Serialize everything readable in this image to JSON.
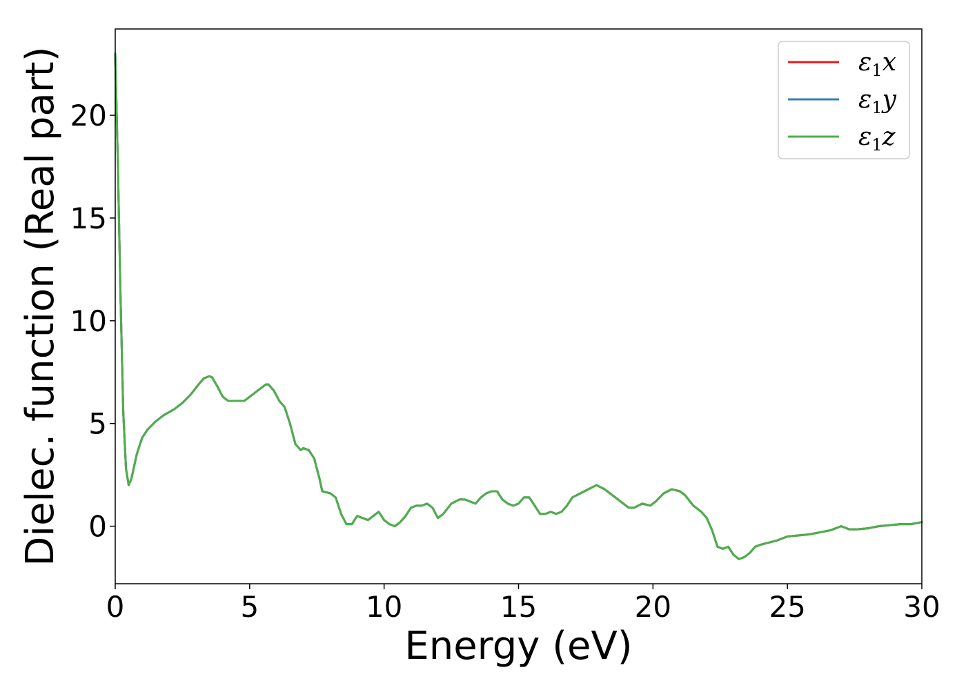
{
  "chart_data": {
    "type": "line",
    "xlabel": "Energy (eV)",
    "ylabel": "Dielec. function (Real part)",
    "xlim": [
      0,
      30
    ],
    "ylim": [
      -2.8,
      24.2
    ],
    "xticks": [
      0,
      5,
      10,
      15,
      20,
      25,
      30
    ],
    "yticks": [
      0,
      5,
      10,
      15,
      20
    ],
    "grid": false,
    "legend_position": "top-right",
    "series": [
      {
        "name": "ε1x",
        "legend_main": "ε",
        "legend_sub": "1",
        "legend_var": "x",
        "color": "#e41a1c",
        "x": [
          0,
          0.1,
          0.2,
          0.3,
          0.4,
          0.5,
          0.6,
          0.8,
          1.0,
          1.2,
          1.5,
          1.8,
          2.2,
          2.5,
          2.8,
          3.1,
          3.3,
          3.5,
          3.6,
          3.8,
          4.0,
          4.2,
          4.5,
          4.8,
          5.0,
          5.2,
          5.4,
          5.6,
          5.7,
          5.9,
          6.1,
          6.3,
          6.5,
          6.7,
          6.9,
          7.0,
          7.2,
          7.4,
          7.6,
          7.7,
          8.0,
          8.2,
          8.4,
          8.6,
          8.8,
          9.0,
          9.2,
          9.4,
          9.6,
          9.8,
          10.0,
          10.2,
          10.4,
          10.6,
          10.8,
          11.0,
          11.2,
          11.4,
          11.6,
          11.8,
          12.0,
          12.2,
          12.5,
          12.8,
          13.0,
          13.2,
          13.4,
          13.6,
          13.8,
          14.0,
          14.2,
          14.4,
          14.6,
          14.8,
          15.0,
          15.2,
          15.4,
          15.6,
          15.8,
          16.0,
          16.2,
          16.4,
          16.6,
          16.8,
          17.0,
          17.3,
          17.6,
          17.9,
          18.2,
          18.5,
          18.8,
          19.1,
          19.3,
          19.6,
          19.9,
          20.1,
          20.4,
          20.7,
          21.0,
          21.2,
          21.5,
          21.8,
          22.0,
          22.2,
          22.4,
          22.6,
          22.8,
          23.0,
          23.2,
          23.4,
          23.6,
          23.8,
          24.0,
          24.3,
          24.6,
          25.0,
          25.4,
          25.8,
          26.2,
          26.6,
          27.0,
          27.3,
          27.6,
          28.0,
          28.4,
          28.8,
          29.2,
          29.6,
          30.0
        ],
        "y": [
          23.0,
          17.5,
          11.0,
          5.5,
          2.8,
          2.0,
          2.3,
          3.5,
          4.3,
          4.7,
          5.1,
          5.4,
          5.7,
          6.0,
          6.4,
          6.9,
          7.2,
          7.3,
          7.25,
          6.8,
          6.3,
          6.1,
          6.1,
          6.1,
          6.3,
          6.5,
          6.7,
          6.9,
          6.9,
          6.6,
          6.1,
          5.8,
          5.0,
          4.0,
          3.7,
          3.8,
          3.7,
          3.3,
          2.3,
          1.7,
          1.6,
          1.4,
          0.6,
          0.1,
          0.1,
          0.5,
          0.4,
          0.3,
          0.5,
          0.7,
          0.3,
          0.1,
          0.0,
          0.2,
          0.5,
          0.9,
          1.0,
          1.0,
          1.1,
          0.9,
          0.4,
          0.6,
          1.1,
          1.3,
          1.3,
          1.2,
          1.1,
          1.4,
          1.6,
          1.7,
          1.7,
          1.3,
          1.1,
          1.0,
          1.1,
          1.4,
          1.4,
          1.0,
          0.6,
          0.6,
          0.7,
          0.6,
          0.7,
          1.0,
          1.4,
          1.6,
          1.8,
          2.0,
          1.8,
          1.5,
          1.2,
          0.9,
          0.9,
          1.1,
          1.0,
          1.2,
          1.6,
          1.8,
          1.7,
          1.5,
          1.0,
          0.7,
          0.4,
          -0.2,
          -1.0,
          -1.1,
          -1.0,
          -1.4,
          -1.6,
          -1.5,
          -1.3,
          -1.0,
          -0.9,
          -0.8,
          -0.7,
          -0.5,
          -0.45,
          -0.4,
          -0.3,
          -0.2,
          0.0,
          -0.15,
          -0.15,
          -0.1,
          0.0,
          0.05,
          0.1,
          0.1,
          0.2
        ]
      },
      {
        "name": "ε1y",
        "legend_main": "ε",
        "legend_sub": "1",
        "legend_var": "y",
        "color": "#377eb8",
        "x": [
          0,
          0.1,
          0.2,
          0.3,
          0.4,
          0.5,
          0.6,
          0.8,
          1.0,
          1.2,
          1.5,
          1.8,
          2.2,
          2.5,
          2.8,
          3.1,
          3.3,
          3.5,
          3.6,
          3.8,
          4.0,
          4.2,
          4.5,
          4.8,
          5.0,
          5.2,
          5.4,
          5.6,
          5.7,
          5.9,
          6.1,
          6.3,
          6.5,
          6.7,
          6.9,
          7.0,
          7.2,
          7.4,
          7.6,
          7.7,
          8.0,
          8.2,
          8.4,
          8.6,
          8.8,
          9.0,
          9.2,
          9.4,
          9.6,
          9.8,
          10.0,
          10.2,
          10.4,
          10.6,
          10.8,
          11.0,
          11.2,
          11.4,
          11.6,
          11.8,
          12.0,
          12.2,
          12.5,
          12.8,
          13.0,
          13.2,
          13.4,
          13.6,
          13.8,
          14.0,
          14.2,
          14.4,
          14.6,
          14.8,
          15.0,
          15.2,
          15.4,
          15.6,
          15.8,
          16.0,
          16.2,
          16.4,
          16.6,
          16.8,
          17.0,
          17.3,
          17.6,
          17.9,
          18.2,
          18.5,
          18.8,
          19.1,
          19.3,
          19.6,
          19.9,
          20.1,
          20.4,
          20.7,
          21.0,
          21.2,
          21.5,
          21.8,
          22.0,
          22.2,
          22.4,
          22.6,
          22.8,
          23.0,
          23.2,
          23.4,
          23.6,
          23.8,
          24.0,
          24.3,
          24.6,
          25.0,
          25.4,
          25.8,
          26.2,
          26.6,
          27.0,
          27.3,
          27.6,
          28.0,
          28.4,
          28.8,
          29.2,
          29.6,
          30.0
        ],
        "y": [
          23.0,
          17.5,
          11.0,
          5.5,
          2.8,
          2.0,
          2.3,
          3.5,
          4.3,
          4.7,
          5.1,
          5.4,
          5.7,
          6.0,
          6.4,
          6.9,
          7.2,
          7.3,
          7.25,
          6.8,
          6.3,
          6.1,
          6.1,
          6.1,
          6.3,
          6.5,
          6.7,
          6.9,
          6.9,
          6.6,
          6.1,
          5.8,
          5.0,
          4.0,
          3.7,
          3.8,
          3.7,
          3.3,
          2.3,
          1.7,
          1.6,
          1.4,
          0.6,
          0.1,
          0.1,
          0.5,
          0.4,
          0.3,
          0.5,
          0.7,
          0.3,
          0.1,
          0.0,
          0.2,
          0.5,
          0.9,
          1.0,
          1.0,
          1.1,
          0.9,
          0.4,
          0.6,
          1.1,
          1.3,
          1.3,
          1.2,
          1.1,
          1.4,
          1.6,
          1.7,
          1.7,
          1.3,
          1.1,
          1.0,
          1.1,
          1.4,
          1.4,
          1.0,
          0.6,
          0.6,
          0.7,
          0.6,
          0.7,
          1.0,
          1.4,
          1.6,
          1.8,
          2.0,
          1.8,
          1.5,
          1.2,
          0.9,
          0.9,
          1.1,
          1.0,
          1.2,
          1.6,
          1.8,
          1.7,
          1.5,
          1.0,
          0.7,
          0.4,
          -0.2,
          -1.0,
          -1.1,
          -1.0,
          -1.4,
          -1.6,
          -1.5,
          -1.3,
          -1.0,
          -0.9,
          -0.8,
          -0.7,
          -0.5,
          -0.45,
          -0.4,
          -0.3,
          -0.2,
          0.0,
          -0.15,
          -0.15,
          -0.1,
          0.0,
          0.05,
          0.1,
          0.1,
          0.2
        ]
      },
      {
        "name": "ε1z",
        "legend_main": "ε",
        "legend_sub": "1",
        "legend_var": "z",
        "color": "#4daf4a",
        "x": [
          0,
          0.1,
          0.2,
          0.3,
          0.4,
          0.5,
          0.6,
          0.8,
          1.0,
          1.2,
          1.5,
          1.8,
          2.2,
          2.5,
          2.8,
          3.1,
          3.3,
          3.5,
          3.6,
          3.8,
          4.0,
          4.2,
          4.5,
          4.8,
          5.0,
          5.2,
          5.4,
          5.6,
          5.7,
          5.9,
          6.1,
          6.3,
          6.5,
          6.7,
          6.9,
          7.0,
          7.2,
          7.4,
          7.6,
          7.7,
          8.0,
          8.2,
          8.4,
          8.6,
          8.8,
          9.0,
          9.2,
          9.4,
          9.6,
          9.8,
          10.0,
          10.2,
          10.4,
          10.6,
          10.8,
          11.0,
          11.2,
          11.4,
          11.6,
          11.8,
          12.0,
          12.2,
          12.5,
          12.8,
          13.0,
          13.2,
          13.4,
          13.6,
          13.8,
          14.0,
          14.2,
          14.4,
          14.6,
          14.8,
          15.0,
          15.2,
          15.4,
          15.6,
          15.8,
          16.0,
          16.2,
          16.4,
          16.6,
          16.8,
          17.0,
          17.3,
          17.6,
          17.9,
          18.2,
          18.5,
          18.8,
          19.1,
          19.3,
          19.6,
          19.9,
          20.1,
          20.4,
          20.7,
          21.0,
          21.2,
          21.5,
          21.8,
          22.0,
          22.2,
          22.4,
          22.6,
          22.8,
          23.0,
          23.2,
          23.4,
          23.6,
          23.8,
          24.0,
          24.3,
          24.6,
          25.0,
          25.4,
          25.8,
          26.2,
          26.6,
          27.0,
          27.3,
          27.6,
          28.0,
          28.4,
          28.8,
          29.2,
          29.6,
          30.0
        ],
        "y": [
          23.0,
          17.5,
          11.0,
          5.5,
          2.8,
          2.0,
          2.3,
          3.5,
          4.3,
          4.7,
          5.1,
          5.4,
          5.7,
          6.0,
          6.4,
          6.9,
          7.2,
          7.3,
          7.25,
          6.8,
          6.3,
          6.1,
          6.1,
          6.1,
          6.3,
          6.5,
          6.7,
          6.9,
          6.9,
          6.6,
          6.1,
          5.8,
          5.0,
          4.0,
          3.7,
          3.8,
          3.7,
          3.3,
          2.3,
          1.7,
          1.6,
          1.4,
          0.6,
          0.1,
          0.1,
          0.5,
          0.4,
          0.3,
          0.5,
          0.7,
          0.3,
          0.1,
          0.0,
          0.2,
          0.5,
          0.9,
          1.0,
          1.0,
          1.1,
          0.9,
          0.4,
          0.6,
          1.1,
          1.3,
          1.3,
          1.2,
          1.1,
          1.4,
          1.6,
          1.7,
          1.7,
          1.3,
          1.1,
          1.0,
          1.1,
          1.4,
          1.4,
          1.0,
          0.6,
          0.6,
          0.7,
          0.6,
          0.7,
          1.0,
          1.4,
          1.6,
          1.8,
          2.0,
          1.8,
          1.5,
          1.2,
          0.9,
          0.9,
          1.1,
          1.0,
          1.2,
          1.6,
          1.8,
          1.7,
          1.5,
          1.0,
          0.7,
          0.4,
          -0.2,
          -1.0,
          -1.1,
          -1.0,
          -1.4,
          -1.6,
          -1.5,
          -1.3,
          -1.0,
          -0.9,
          -0.8,
          -0.7,
          -0.5,
          -0.45,
          -0.4,
          -0.3,
          -0.2,
          0.0,
          -0.15,
          -0.15,
          -0.1,
          0.0,
          0.05,
          0.1,
          0.1,
          0.2
        ]
      }
    ]
  }
}
